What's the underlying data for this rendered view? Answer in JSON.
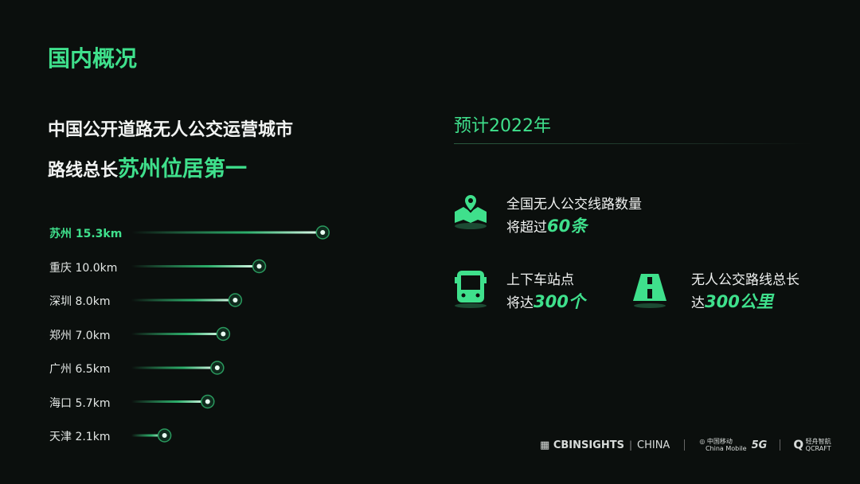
{
  "title": "国内概况",
  "headline": {
    "line1": "中国公开道路无人公交运营城市",
    "line2_prefix": "路线总长",
    "line2_highlight": "苏州位居第一"
  },
  "chart_data": {
    "type": "bar",
    "orientation": "horizontal",
    "unit": "km",
    "categories": [
      "苏州",
      "重庆",
      "深圳",
      "郑州",
      "广州",
      "海口",
      "天津"
    ],
    "values": [
      15.3,
      10.0,
      8.0,
      7.0,
      6.5,
      5.7,
      2.1
    ],
    "labels": [
      "苏州 15.3km",
      "重庆 10.0km",
      "深圳 8.0km",
      "郑州 7.0km",
      "广州 6.5km",
      "海口 5.7km",
      "天津 2.1km"
    ],
    "accent": "#3fe08c"
  },
  "forecast": {
    "title": "预计2022年",
    "stats": [
      {
        "icon": "map-pin-icon",
        "line1": "全国无人公交线路数量",
        "prefix": "将超过",
        "value": "60条"
      },
      {
        "icon": "bus-icon",
        "line1": "上下车站点",
        "prefix": "将达",
        "value": "300个"
      },
      {
        "icon": "road-icon",
        "line1": "无人公交路线总长",
        "prefix": "达",
        "value": "300公里"
      }
    ]
  },
  "footer": {
    "cb": "CBINSIGHTS",
    "china": "CHINA",
    "cm_cn": "中国移动",
    "cm_en": "China Mobile",
    "fiveg": "5G",
    "qc_cn": "轻舟智航",
    "qc_en": "QCRAFT"
  }
}
